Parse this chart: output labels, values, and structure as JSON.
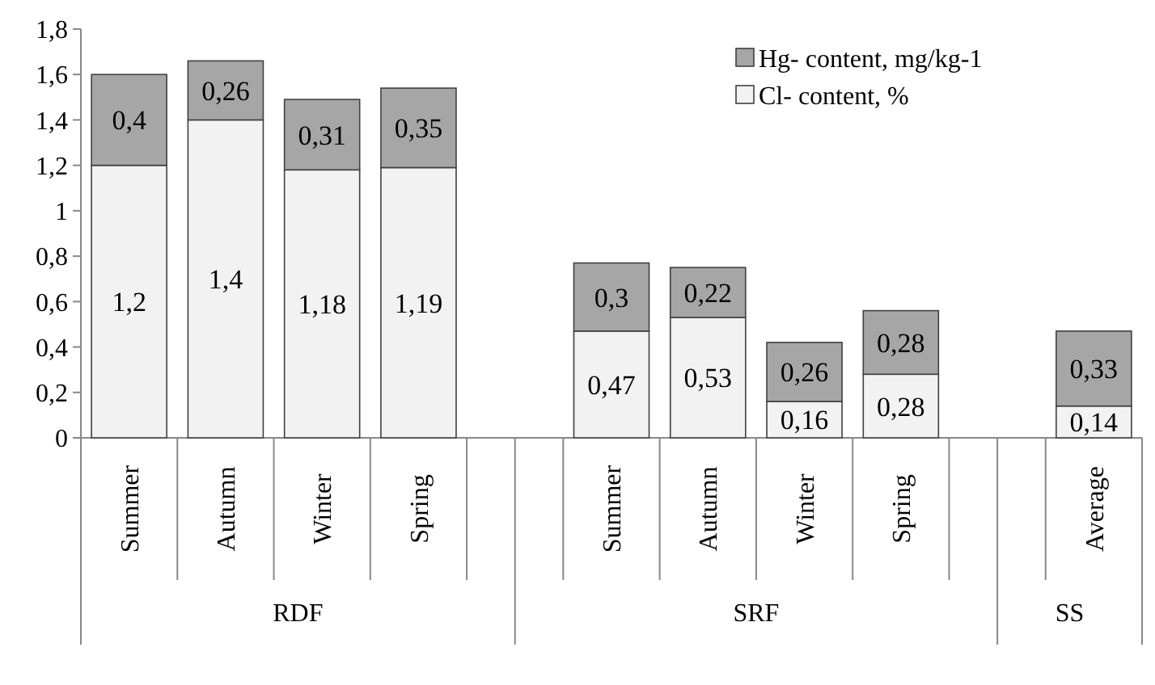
{
  "chart_data": {
    "type": "bar",
    "stacked": true,
    "categories": [
      "Summer",
      "Autumn",
      "Winter",
      "Spring",
      null,
      "Summer",
      "Autumn",
      "Winter",
      "Spring",
      null,
      "Average"
    ],
    "series": [
      {
        "name": "Cl- content, %",
        "color": "#f2f2f2",
        "values": [
          1.2,
          1.4,
          1.18,
          1.19,
          null,
          0.47,
          0.53,
          0.16,
          0.28,
          null,
          0.14
        ],
        "value_labels": [
          "1,2",
          "1,4",
          "1,18",
          "1,19",
          null,
          "0,47",
          "0,53",
          "0,16",
          "0,28",
          null,
          "0,14"
        ]
      },
      {
        "name": "Hg- content, mg/kg-1",
        "color": "#a6a6a6",
        "values": [
          0.4,
          0.26,
          0.31,
          0.35,
          null,
          0.3,
          0.22,
          0.26,
          0.28,
          null,
          0.33
        ],
        "value_labels": [
          "0,4",
          "0,26",
          "0,31",
          "0,35",
          null,
          "0,3",
          "0,22",
          "0,26",
          "0,28",
          null,
          "0,33"
        ]
      }
    ],
    "ylim": [
      0,
      1.8
    ],
    "yticks": [
      0,
      {
        "value": 0.2,
        "label": "0,2"
      },
      {
        "value": 0.4,
        "label": "0,4"
      },
      {
        "value": 0.6,
        "label": "0,6"
      },
      {
        "value": 0.8,
        "label": "0,8"
      },
      1,
      {
        "value": 1.2,
        "label": "1,2"
      },
      {
        "value": 1.4,
        "label": "1,4"
      },
      {
        "value": 1.6,
        "label": "1,6"
      },
      {
        "value": 1.8,
        "label": "1,8"
      }
    ],
    "annotations": [
      "RDF",
      "SRF",
      "SS"
    ],
    "legend": "top right",
    "grid": false
  }
}
